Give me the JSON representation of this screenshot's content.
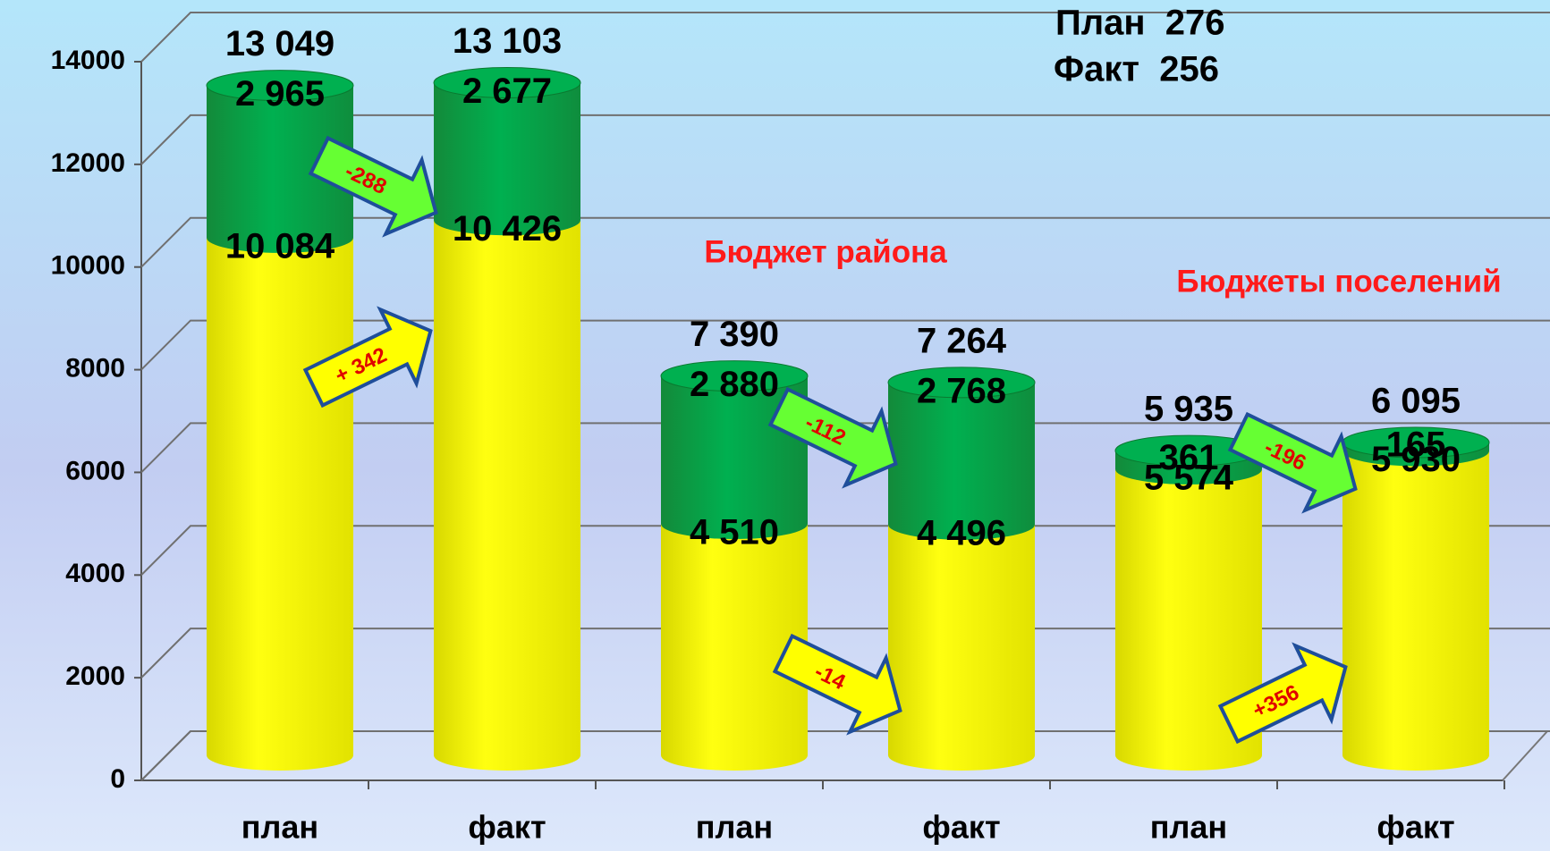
{
  "chart_data": {
    "type": "bar",
    "stacked": true,
    "categories": [
      "план",
      "факт",
      "план",
      "факт",
      "план",
      "факт"
    ],
    "series": [
      {
        "color": "#ffff00",
        "values": [
          10084,
          10426,
          4510,
          4496,
          5574,
          5930
        ],
        "value_labels": [
          "10 084",
          "10 426",
          "4 510",
          "4 496",
          "5 574",
          "5 930"
        ]
      },
      {
        "color": "#00b050",
        "values": [
          2965,
          2677,
          2880,
          2768,
          361,
          165
        ],
        "value_labels": [
          "2 965",
          "2 677",
          "2 880",
          "2 768",
          "361",
          "165"
        ]
      }
    ],
    "totals": [
      13049,
      13103,
      7390,
      7264,
      5935,
      6095
    ],
    "total_labels": [
      "13 049",
      "13 103",
      "7 390",
      "7 264",
      "5 935",
      "6 095"
    ],
    "ylim": [
      0,
      14000
    ],
    "yticks": [
      0,
      2000,
      4000,
      6000,
      8000,
      10000,
      12000,
      14000
    ],
    "grid": true,
    "annotations": [
      "План  276",
      "Факт  256",
      "Бюджет района",
      "Бюджеты поселений"
    ],
    "arrow_labels": [
      "-288",
      "+ 342",
      "-112",
      "-14",
      "-196",
      "+356"
    ]
  }
}
